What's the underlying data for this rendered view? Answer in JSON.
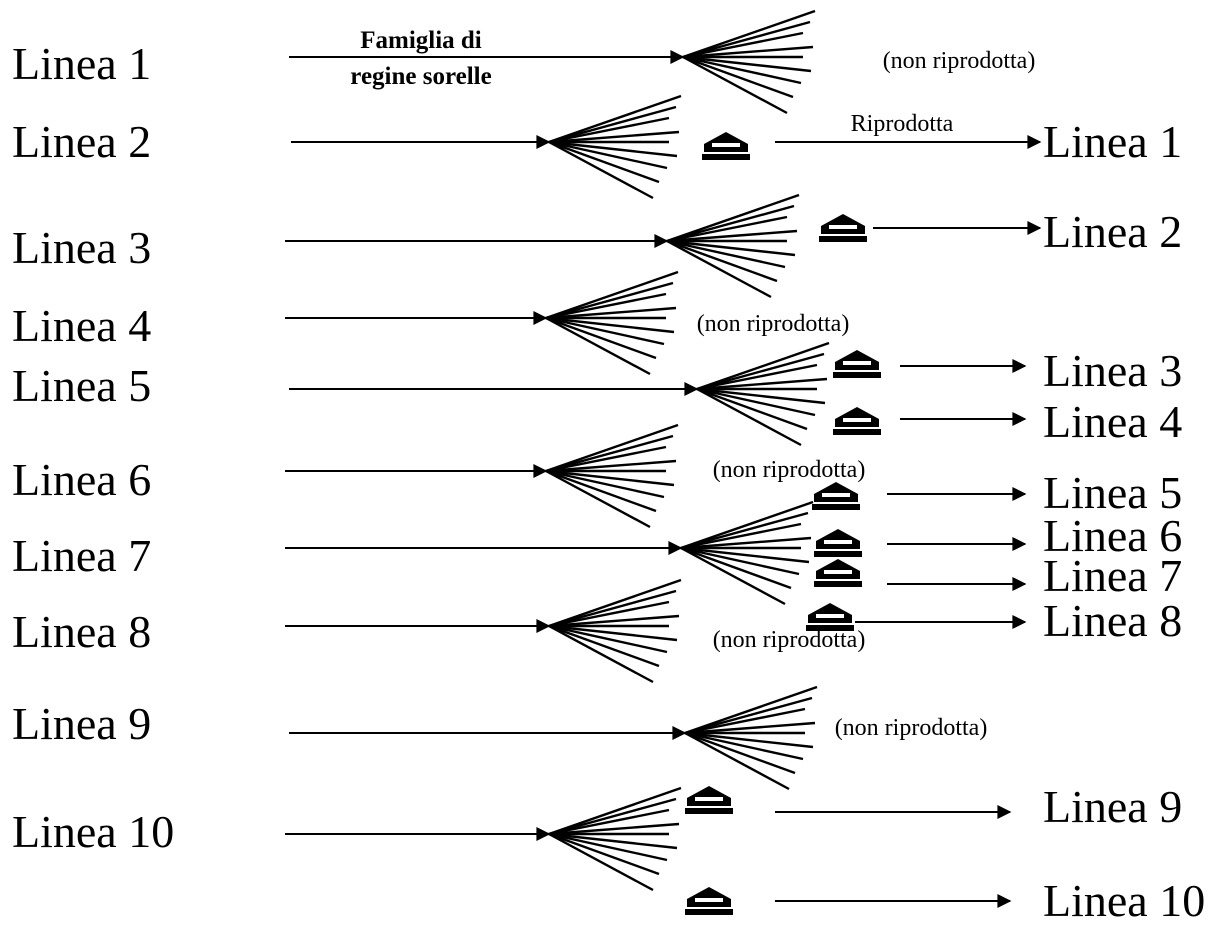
{
  "title": {
    "line1": "Famiglia di",
    "line2": "regine sorelle"
  },
  "left_labels": [
    "Linea 1",
    "Linea 2",
    "Linea 3",
    "Linea 4",
    "Linea 5",
    "Linea 6",
    "Linea 7",
    "Linea 8",
    "Linea 9",
    "Linea 10"
  ],
  "right_labels": [
    "Linea 1",
    "Linea 2",
    "Linea 3",
    "Linea 4",
    "Linea 5",
    "Linea 6",
    "Linea 7",
    "Linea 8",
    "Linea 9",
    "Linea 10"
  ],
  "notes": {
    "reproduced": "Riprodotta",
    "not_reproduced": "(non riprodotta)"
  },
  "icon": "queen-cell-icon"
}
